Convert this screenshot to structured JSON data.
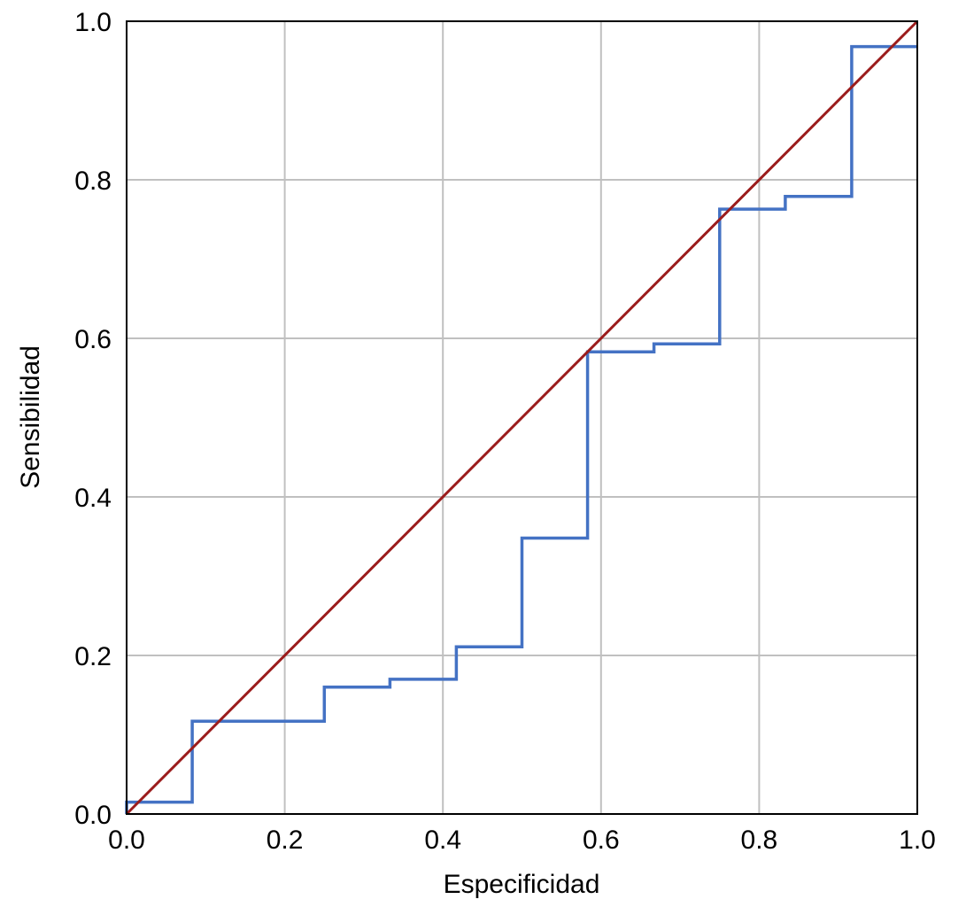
{
  "chart_data": {
    "type": "line",
    "title": "",
    "xlabel": "Especificidad",
    "ylabel": "Sensibilidad",
    "xlim": [
      0,
      1
    ],
    "ylim": [
      0,
      1
    ],
    "grid": true,
    "xticks": [
      "0.0",
      "0.2",
      "0.4",
      "0.6",
      "0.8",
      "1.0"
    ],
    "yticks": [
      "0.0",
      "0.2",
      "0.4",
      "0.6",
      "0.8",
      "1.0"
    ],
    "tick_values": [
      0,
      0.2,
      0.4,
      0.6,
      0.8,
      1.0
    ],
    "series": [
      {
        "name": "ROC step curve",
        "color": "#4472C4",
        "step": true,
        "x": [
          0,
          0,
          0.083,
          0.083,
          0.25,
          0.25,
          0.333,
          0.333,
          0.417,
          0.417,
          0.5,
          0.5,
          0.583,
          0.583,
          0.667,
          0.667,
          0.75,
          0.75,
          0.833,
          0.833,
          0.917,
          0.917,
          1.0
        ],
        "y": [
          0,
          0.015,
          0.015,
          0.117,
          0.117,
          0.16,
          0.16,
          0.17,
          0.17,
          0.211,
          0.211,
          0.348,
          0.348,
          0.583,
          0.583,
          0.593,
          0.593,
          0.763,
          0.763,
          0.779,
          0.779,
          0.968,
          0.968
        ]
      },
      {
        "name": "Reference diagonal",
        "color": "#9B1C1C",
        "x": [
          0,
          1
        ],
        "y": [
          0,
          1
        ]
      }
    ]
  }
}
